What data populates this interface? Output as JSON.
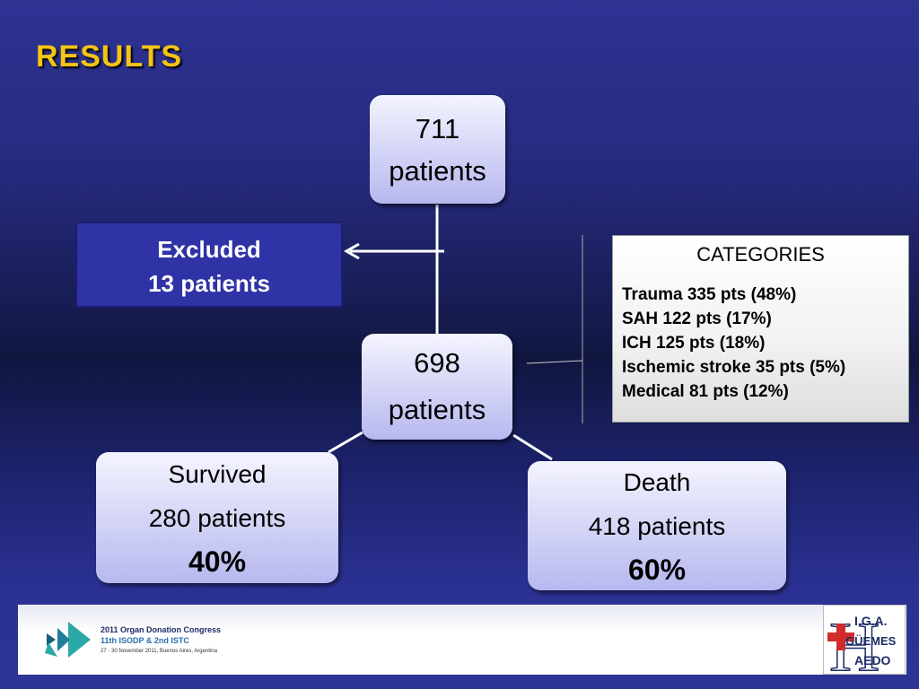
{
  "title": "RESULTS",
  "nodes": {
    "n711": {
      "line1": "711",
      "line2": "patients"
    },
    "n698": {
      "line1": "698",
      "line2": "patients"
    },
    "survived": {
      "label": "Survived",
      "count": "280 patients",
      "pct": "40%"
    },
    "death": {
      "label": "Death",
      "count": "418 patients",
      "pct": "60%"
    }
  },
  "excluded": {
    "line1": "Excluded",
    "line2": "13 patients"
  },
  "categories": {
    "title": "CATEGORIES",
    "items": [
      "Trauma 335 pts (48%)",
      "SAH 122 pts (17%)",
      "ICH 125 pts (18%)",
      "Ischemic stroke 35 pts (5%)",
      "Medical 81 pts (12%)"
    ]
  },
  "footer": {
    "line1": "2011 Organ Donation Congress",
    "line2": "11th ISODP & 2nd ISTC",
    "line3": "27 - 30 November 2011, Buenos Aires, Argentina"
  },
  "hospital_logo": {
    "lines": [
      "I.G.A.",
      "GÜEMES",
      "AEDO"
    ],
    "letter": "H"
  },
  "colors": {
    "title": "#f4c417",
    "excluded_bg": "#2f33a6",
    "node_bg": "#cfd0f5"
  }
}
